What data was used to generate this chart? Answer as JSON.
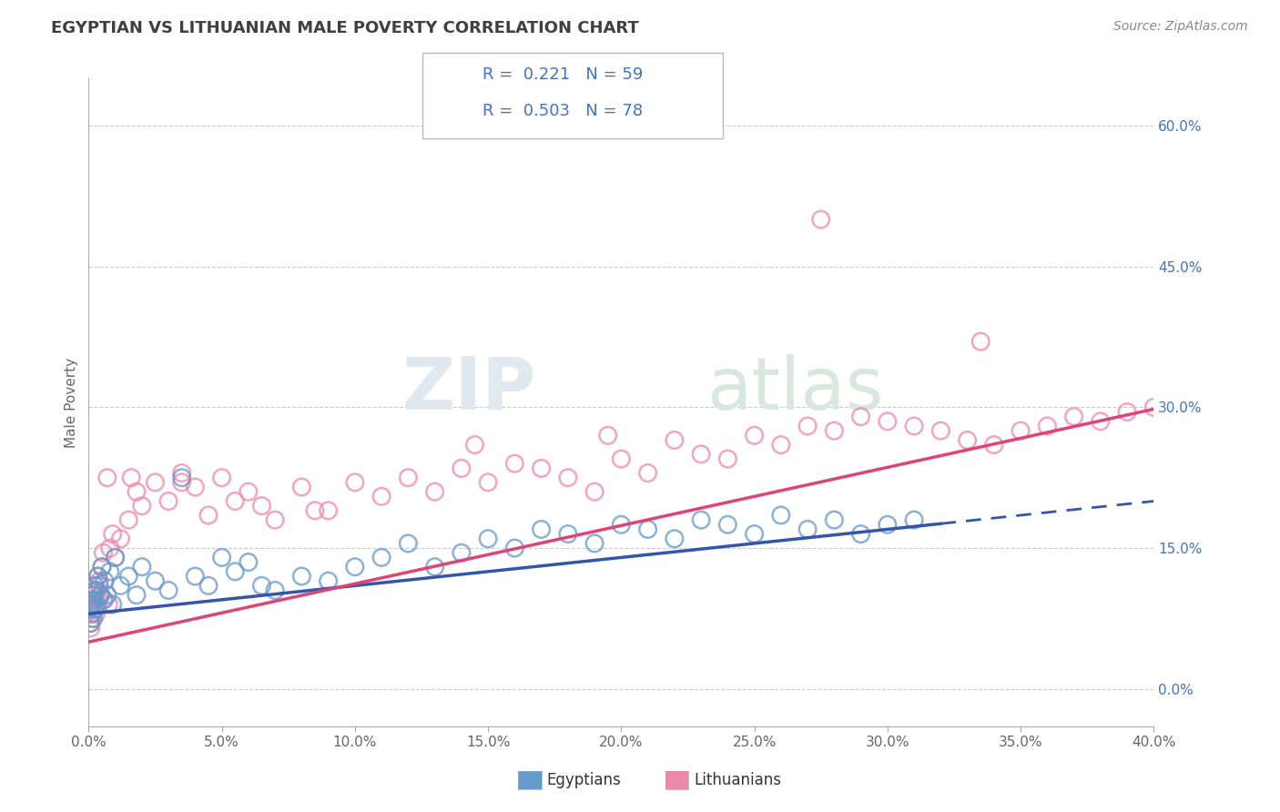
{
  "title": "EGYPTIAN VS LITHUANIAN MALE POVERTY CORRELATION CHART",
  "source": "Source: ZipAtlas.com",
  "ylabel": "Male Poverty",
  "ylabel_right_vals": [
    0.0,
    15.0,
    30.0,
    45.0,
    60.0
  ],
  "xmin": 0.0,
  "xmax": 40.0,
  "ymin": -4.0,
  "ymax": 65.0,
  "egyptian_R": 0.221,
  "egyptian_N": 59,
  "lithuanian_R": 0.503,
  "lithuanian_N": 78,
  "egyptian_color": "#6699CC",
  "lithuanian_color": "#EE88AA",
  "egyptian_line_color": "#3355AA",
  "lithuanian_line_color": "#DD4477",
  "background_color": "#FFFFFF",
  "grid_color": "#CCCCCC",
  "title_color": "#404040",
  "legend_label_color": "#4472C4",
  "watermark_zip": "ZIP",
  "watermark_atlas": "atlas",
  "egy_x": [
    0.05,
    0.08,
    0.1,
    0.12,
    0.15,
    0.18,
    0.2,
    0.22,
    0.25,
    0.28,
    0.3,
    0.35,
    0.4,
    0.45,
    0.5,
    0.55,
    0.6,
    0.7,
    0.8,
    0.9,
    1.0,
    1.2,
    1.5,
    1.8,
    2.0,
    2.5,
    3.0,
    3.5,
    4.0,
    4.5,
    5.0,
    5.5,
    6.0,
    6.5,
    7.0,
    8.0,
    9.0,
    10.0,
    11.0,
    12.0,
    13.0,
    14.0,
    15.0,
    16.0,
    17.0,
    18.0,
    19.0,
    20.0,
    21.0,
    22.0,
    23.0,
    24.0,
    25.0,
    26.0,
    27.0,
    28.0,
    29.0,
    30.0,
    31.0
  ],
  "egy_y": [
    8.5,
    7.0,
    9.0,
    8.0,
    10.0,
    7.5,
    9.5,
    11.0,
    8.5,
    10.5,
    9.0,
    12.0,
    11.0,
    10.0,
    13.0,
    9.5,
    11.5,
    10.0,
    12.5,
    9.0,
    14.0,
    11.0,
    12.0,
    10.0,
    13.0,
    11.5,
    10.5,
    22.5,
    12.0,
    11.0,
    14.0,
    12.5,
    13.5,
    11.0,
    10.5,
    12.0,
    11.5,
    13.0,
    14.0,
    15.5,
    13.0,
    14.5,
    16.0,
    15.0,
    17.0,
    16.5,
    15.5,
    17.5,
    17.0,
    16.0,
    18.0,
    17.5,
    16.5,
    18.5,
    17.0,
    18.0,
    16.5,
    17.5,
    18.0
  ],
  "lit_x": [
    0.05,
    0.08,
    0.1,
    0.12,
    0.15,
    0.18,
    0.2,
    0.22,
    0.25,
    0.28,
    0.3,
    0.35,
    0.4,
    0.45,
    0.5,
    0.55,
    0.6,
    0.7,
    0.8,
    0.9,
    1.0,
    1.2,
    1.5,
    1.8,
    2.0,
    2.5,
    3.0,
    3.5,
    4.0,
    4.5,
    5.0,
    5.5,
    6.0,
    6.5,
    7.0,
    8.0,
    9.0,
    10.0,
    11.0,
    12.0,
    13.0,
    14.0,
    15.0,
    16.0,
    17.0,
    18.0,
    19.0,
    20.0,
    21.0,
    22.0,
    23.0,
    24.0,
    25.0,
    26.0,
    27.0,
    28.0,
    29.0,
    30.0,
    31.0,
    32.0,
    33.0,
    34.0,
    35.0,
    36.0,
    37.0,
    38.0,
    39.0,
    40.0,
    33.5,
    27.5,
    19.5,
    14.5,
    8.5,
    3.5,
    1.6,
    0.75,
    0.4,
    0.22
  ],
  "lit_y": [
    7.0,
    6.5,
    8.0,
    7.5,
    9.0,
    8.5,
    10.0,
    9.5,
    11.0,
    8.0,
    10.5,
    12.0,
    11.5,
    10.0,
    13.0,
    14.5,
    9.5,
    22.5,
    15.0,
    16.5,
    14.0,
    16.0,
    18.0,
    21.0,
    19.5,
    22.0,
    20.0,
    23.0,
    21.5,
    18.5,
    22.5,
    20.0,
    21.0,
    19.5,
    18.0,
    21.5,
    19.0,
    22.0,
    20.5,
    22.5,
    21.0,
    23.5,
    22.0,
    24.0,
    23.5,
    22.5,
    21.0,
    24.5,
    23.0,
    26.5,
    25.0,
    24.5,
    27.0,
    26.0,
    28.0,
    27.5,
    29.0,
    28.5,
    28.0,
    27.5,
    26.5,
    26.0,
    27.5,
    28.0,
    29.0,
    28.5,
    29.5,
    30.0,
    37.0,
    50.0,
    27.0,
    26.0,
    19.0,
    22.0,
    22.5,
    9.0,
    9.5,
    10.5
  ]
}
